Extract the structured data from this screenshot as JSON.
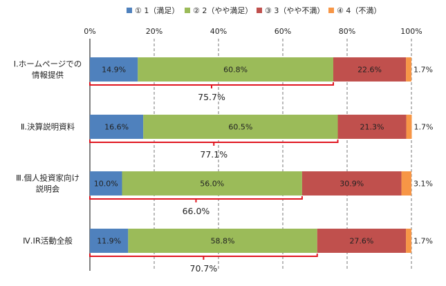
{
  "chart_data": {
    "type": "bar",
    "orientation": "horizontal",
    "stacked": true,
    "legend_position": "top",
    "grid": true,
    "xlim": [
      0,
      100
    ],
    "x_ticks": [
      "0%",
      "20%",
      "40%",
      "60%",
      "80%",
      "100%"
    ],
    "categories": [
      [
        "Ⅰ.ホームページでの",
        "情報提供"
      ],
      [
        "Ⅱ.決算説明資料"
      ],
      [
        "Ⅲ.個人投資家向け",
        "説明会"
      ],
      [
        "Ⅳ.IR活動全般"
      ]
    ],
    "series": [
      {
        "name": "① 1（満足）",
        "color": "#4f81bd",
        "values": [
          14.9,
          16.6,
          10.0,
          11.9
        ],
        "labels": [
          "14.9%",
          "16.6%",
          "10.0%",
          "11.9%"
        ]
      },
      {
        "name": "② 2（やや満足）",
        "color": "#9bbb59",
        "values": [
          60.8,
          60.5,
          56.0,
          58.8
        ],
        "labels": [
          "60.8%",
          "60.5%",
          "56.0%",
          "58.8%"
        ]
      },
      {
        "name": "③ 3（やや不満）",
        "color": "#c0504d",
        "values": [
          22.6,
          21.3,
          30.9,
          27.6
        ],
        "labels": [
          "22.6%",
          "21.3%",
          "30.9%",
          "27.6%"
        ]
      },
      {
        "name": "④ 4（不満）",
        "color": "#f79646",
        "values": [
          1.7,
          1.7,
          3.1,
          1.7
        ],
        "labels": [
          "1.7%",
          "1.7%",
          "3.1%",
          "1.7%"
        ]
      }
    ],
    "annotations": {
      "type": "bracket",
      "color": "#e0141e",
      "values": [
        75.7,
        77.1,
        66.0,
        70.7
      ],
      "labels": [
        "75.7%",
        "77.1%",
        "66.0%",
        "70.7%"
      ]
    }
  }
}
